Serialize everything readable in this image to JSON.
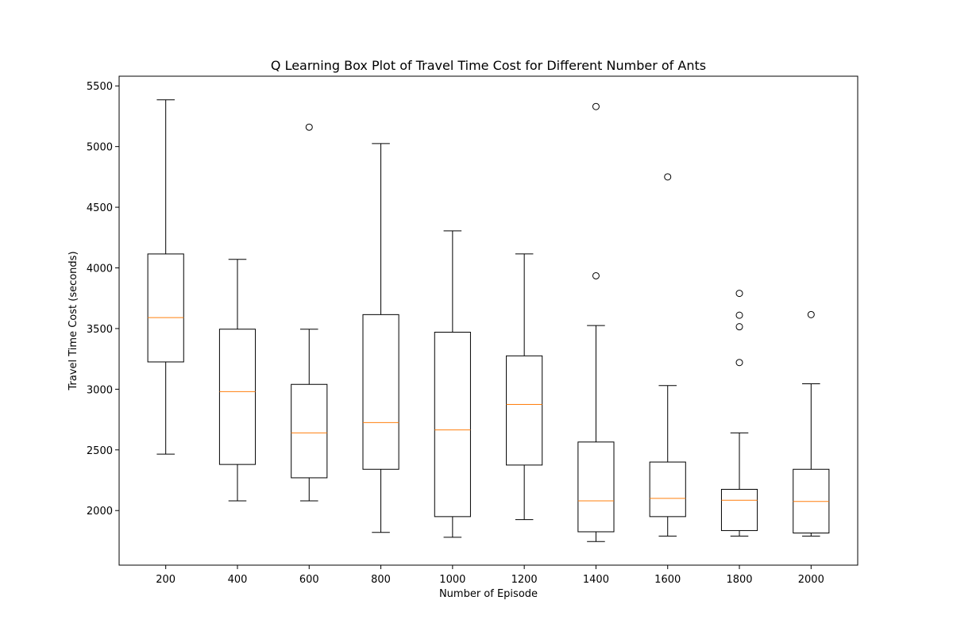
{
  "chart_data": {
    "type": "box",
    "title": "Q Learning Box Plot of Travel Time Cost for Different Number of Ants",
    "xlabel": "Number of Episode",
    "ylabel": "Travel Time Cost (seconds)",
    "ylim": [
      1550,
      5580
    ],
    "yticks": [
      2000,
      2500,
      3000,
      3500,
      4000,
      4500,
      5000,
      5500
    ],
    "grid": false,
    "colors": {
      "box": "#000000",
      "median": "#ff7f0e",
      "outlier": "#000000"
    },
    "categories": [
      "200",
      "400",
      "600",
      "800",
      "1000",
      "1200",
      "1400",
      "1600",
      "1800",
      "2000"
    ],
    "boxes": [
      {
        "category": "200",
        "whisker_low": 2465,
        "q1": 3225,
        "median": 3590,
        "q3": 4115,
        "whisker_high": 5385,
        "outliers": []
      },
      {
        "category": "400",
        "whisker_low": 2080,
        "q1": 2380,
        "median": 2980,
        "q3": 3495,
        "whisker_high": 4070,
        "outliers": []
      },
      {
        "category": "600",
        "whisker_low": 2080,
        "q1": 2270,
        "median": 2640,
        "q3": 3040,
        "whisker_high": 3495,
        "outliers": [
          5160
        ]
      },
      {
        "category": "800",
        "whisker_low": 1820,
        "q1": 2340,
        "median": 2725,
        "q3": 3615,
        "whisker_high": 5025,
        "outliers": []
      },
      {
        "category": "1000",
        "whisker_low": 1780,
        "q1": 1950,
        "median": 2665,
        "q3": 3470,
        "whisker_high": 4305,
        "outliers": []
      },
      {
        "category": "1200",
        "whisker_low": 1925,
        "q1": 2375,
        "median": 2875,
        "q3": 3275,
        "whisker_high": 4115,
        "outliers": []
      },
      {
        "category": "1400",
        "whisker_low": 1745,
        "q1": 1825,
        "median": 2080,
        "q3": 2565,
        "whisker_high": 3525,
        "outliers": [
          3935,
          5330
        ]
      },
      {
        "category": "1600",
        "whisker_low": 1790,
        "q1": 1950,
        "median": 2100,
        "q3": 2400,
        "whisker_high": 3030,
        "outliers": [
          4750
        ]
      },
      {
        "category": "1800",
        "whisker_low": 1790,
        "q1": 1835,
        "median": 2085,
        "q3": 2175,
        "whisker_high": 2640,
        "outliers": [
          3220,
          3515,
          3610,
          3790
        ]
      },
      {
        "category": "2000",
        "whisker_low": 1790,
        "q1": 1815,
        "median": 2075,
        "q3": 2340,
        "whisker_high": 3045,
        "outliers": [
          3615
        ]
      }
    ]
  }
}
